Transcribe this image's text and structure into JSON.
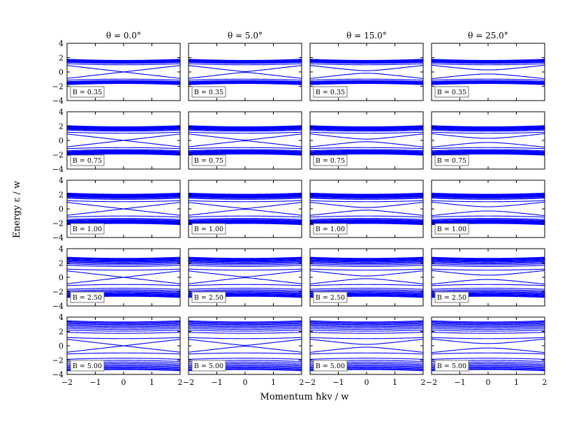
{
  "chart_data": {
    "type": "line",
    "layout": "grid 5 rows x 4 columns",
    "line_color": "#0000ff",
    "xlabel": "Momentum ħkv / w",
    "ylabel": "Energy ε / w",
    "xlim": [
      -2,
      2
    ],
    "ylim": [
      -4,
      4
    ],
    "x_ticks": [
      -2,
      -1,
      0,
      1,
      2
    ],
    "y_ticks": [
      -4,
      -2,
      0,
      2,
      4
    ],
    "column_titles": [
      "θ = 0.0°",
      "θ = 5.0°",
      "θ = 15.0°",
      "θ = 25.0°"
    ],
    "theta_values": [
      0.0,
      5.0,
      15.0,
      25.0
    ],
    "row_labels": [
      "B = 0.35",
      "B = 0.75",
      "B = 1.00",
      "B = 2.50",
      "B = 5.00"
    ],
    "B_values": [
      0.35,
      0.75,
      1.0,
      2.5,
      5.0
    ],
    "levels_per_sign": 11,
    "grid": false,
    "label_box_position": "bottom-left"
  }
}
